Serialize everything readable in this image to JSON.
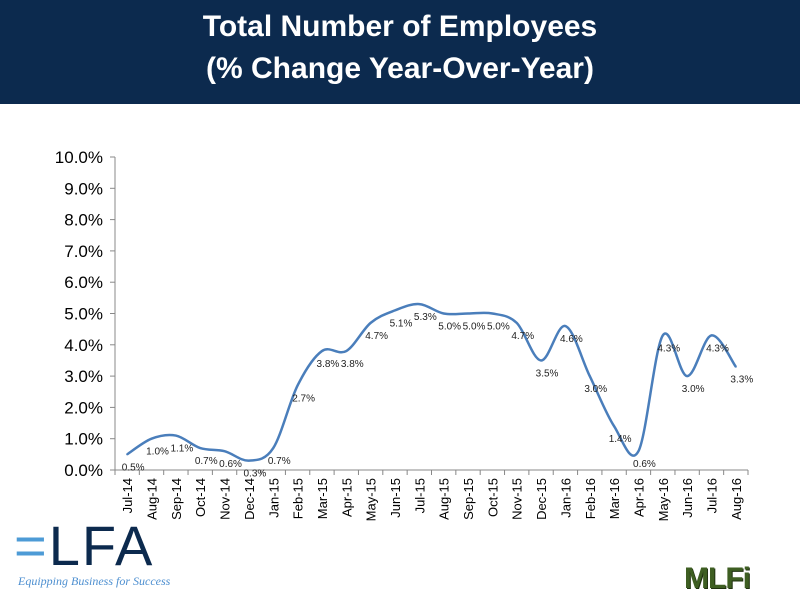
{
  "header": {
    "title_line1": "Total Number of Employees",
    "title_line2": "(% Change Year-Over-Year)"
  },
  "logos": {
    "elfa": "ELFA",
    "elfa_tagline": "Equipping Business for Success",
    "mlfi": "MLFi"
  },
  "chart_data": {
    "type": "line",
    "title": "Total Number of Employees (% Change Year-Over-Year)",
    "xlabel": "",
    "ylabel": "",
    "ylim": [
      0,
      10
    ],
    "yticks": [
      "0.0%",
      "1.0%",
      "2.0%",
      "3.0%",
      "4.0%",
      "5.0%",
      "6.0%",
      "7.0%",
      "8.0%",
      "9.0%",
      "10.0%"
    ],
    "categories": [
      "Jul-14",
      "Aug-14",
      "Sep-14",
      "Oct-14",
      "Nov-14",
      "Dec-14",
      "Jan-15",
      "Feb-15",
      "Mar-15",
      "Apr-15",
      "May-15",
      "Jun-15",
      "Jul-15",
      "Aug-15",
      "Sep-15",
      "Oct-15",
      "Nov-15",
      "Dec-15",
      "Jan-16",
      "Feb-16",
      "Mar-16",
      "Apr-16",
      "May-16",
      "Jun-16",
      "Jul-16",
      "Aug-16"
    ],
    "values": [
      0.5,
      1.0,
      1.1,
      0.7,
      0.6,
      0.3,
      0.7,
      2.7,
      3.8,
      3.8,
      4.7,
      5.1,
      5.3,
      5.0,
      5.0,
      5.0,
      4.7,
      3.5,
      4.6,
      3.0,
      1.4,
      0.6,
      4.3,
      3.0,
      4.3,
      3.3
    ],
    "data_labels": [
      "0.5%",
      "1.0%",
      "1.1%",
      "0.7%",
      "0.6%",
      "0.3%",
      "0.7%",
      "2.7%",
      "3.8%",
      "3.8%",
      "4.7%",
      "5.1%",
      "5.3%",
      "5.0%",
      "5.0%",
      "5.0%",
      "4.7%",
      "3.5%",
      "4.6%",
      "3.0%",
      "1.4%",
      "0.6%",
      "4.3%",
      "3.0%",
      "4.3%",
      "3.3%"
    ],
    "line_color": "#4a7ebb",
    "grid": false,
    "legend": "none"
  }
}
